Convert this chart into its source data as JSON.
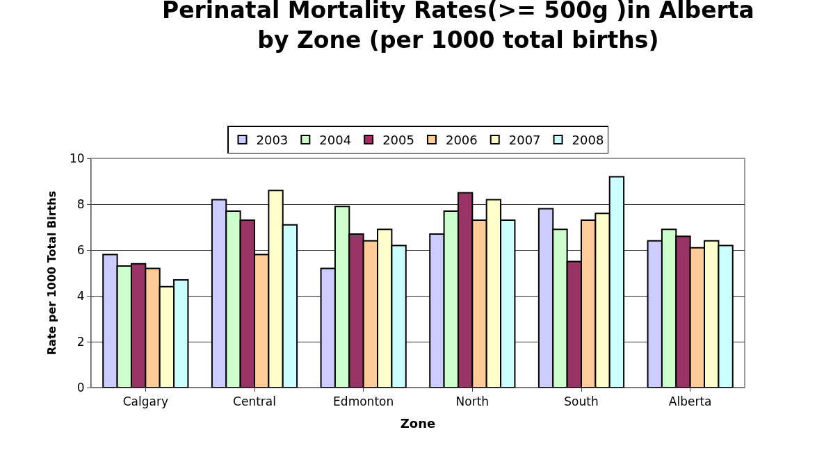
{
  "chart_data": {
    "type": "bar",
    "title": "Perinatal Mortality Rates(>= 500g )in Alberta\nby Zone (per 1000 total births)",
    "xlabel": "Zone",
    "ylabel": "Rate per 1000 Total Births",
    "categories": [
      "Calgary",
      "Central",
      "Edmonton",
      "North",
      "South",
      "Alberta"
    ],
    "series": [
      {
        "name": "2003",
        "color": "#ccccff",
        "values": [
          5.8,
          8.2,
          5.2,
          6.7,
          7.8,
          6.4
        ]
      },
      {
        "name": "2004",
        "color": "#ccffcc",
        "values": [
          5.3,
          7.7,
          7.9,
          7.7,
          6.9,
          6.9
        ]
      },
      {
        "name": "2005",
        "color": "#993366",
        "values": [
          5.4,
          7.3,
          6.7,
          8.5,
          5.5,
          6.6
        ]
      },
      {
        "name": "2006",
        "color": "#ffcc99",
        "values": [
          5.2,
          5.8,
          6.4,
          7.3,
          7.3,
          6.1
        ]
      },
      {
        "name": "2007",
        "color": "#ffffcc",
        "values": [
          4.4,
          8.6,
          6.9,
          8.2,
          7.6,
          6.4
        ]
      },
      {
        "name": "2008",
        "color": "#ccffff",
        "values": [
          4.7,
          7.1,
          6.2,
          7.3,
          9.2,
          6.2
        ]
      }
    ],
    "ylim": [
      0,
      10
    ],
    "yticks": [
      0,
      2,
      4,
      6,
      8,
      10
    ],
    "grid": "y",
    "legend": "top"
  }
}
